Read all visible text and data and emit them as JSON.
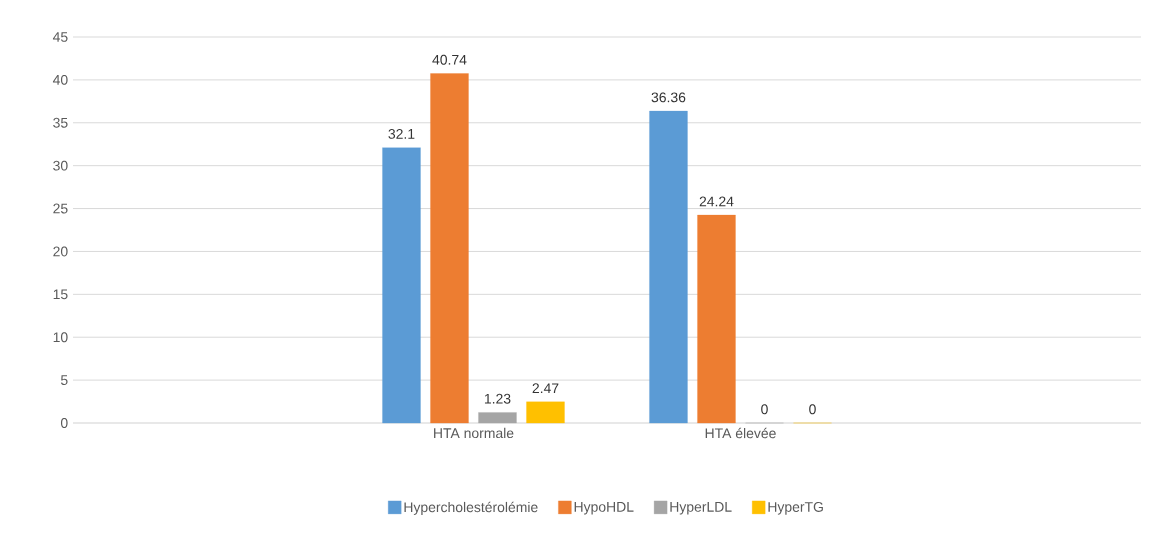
{
  "chart_data": {
    "type": "bar",
    "categories": [
      null,
      "HTA normale",
      "HTA élevée",
      null
    ],
    "series": [
      {
        "name": "Hypercholestérolémie",
        "color": "#5b9bd5",
        "values": [
          null,
          32.1,
          36.36,
          null
        ]
      },
      {
        "name": "HypoHDL",
        "color": "#ed7d31",
        "values": [
          null,
          40.74,
          24.24,
          null
        ]
      },
      {
        "name": "HyperLDL",
        "color": "#a5a5a5",
        "values": [
          null,
          1.23,
          0,
          null
        ]
      },
      {
        "name": "HyperTG",
        "color": "#ffc000",
        "values": [
          null,
          2.47,
          0,
          null
        ]
      }
    ],
    "ylim": [
      0,
      45
    ],
    "yticks": [
      0,
      5,
      10,
      15,
      20,
      25,
      30,
      35,
      40,
      45
    ],
    "grid": "y",
    "legend": "bottom",
    "data_labels": true
  }
}
